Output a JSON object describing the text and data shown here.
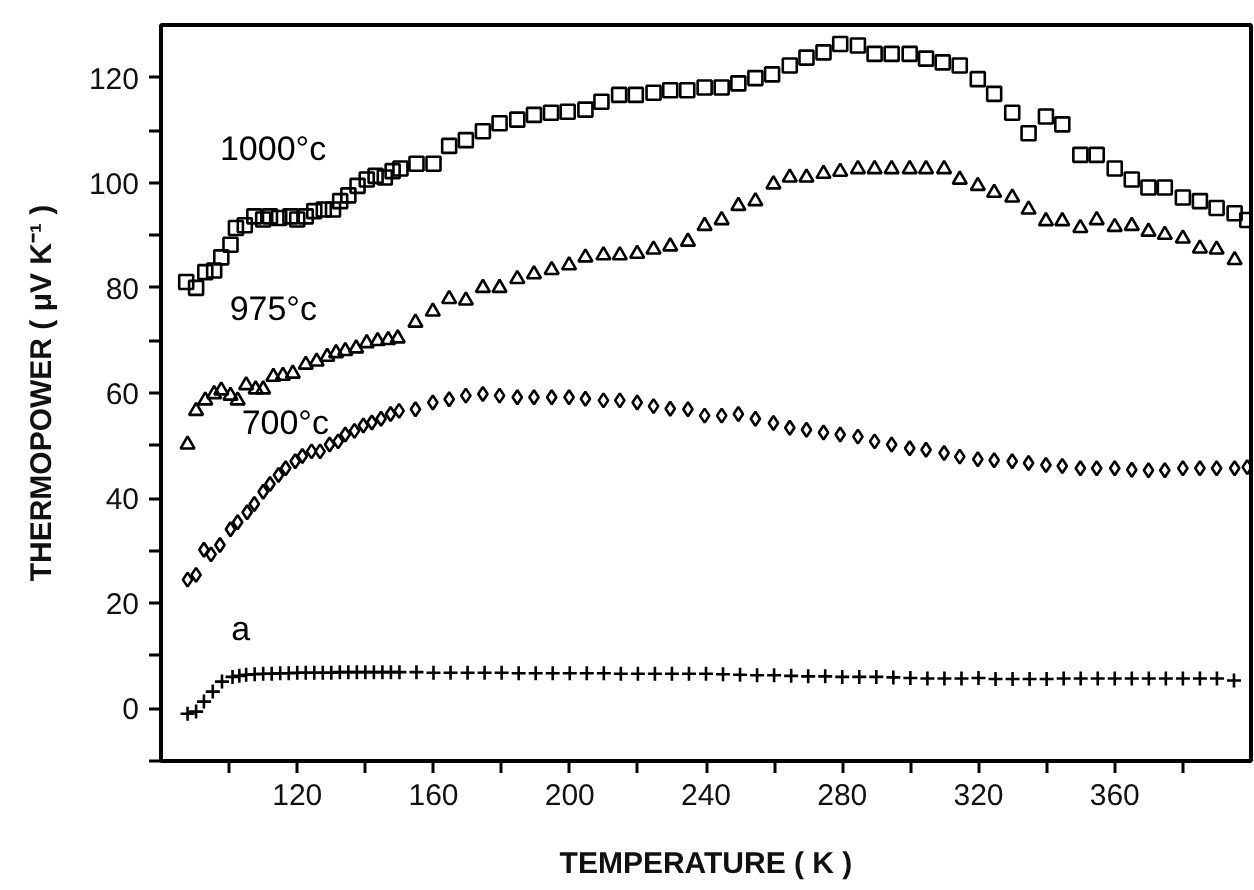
{
  "chart_data": {
    "type": "scatter",
    "xlabel": "TEMPERATURE ( K )",
    "ylabel": "THERMOPOWER ( μV K⁻¹ )",
    "xlim": [
      80,
      400
    ],
    "ylim": [
      -10,
      130
    ],
    "xticks": [
      {
        "value": 100,
        "label": null
      },
      120,
      {
        "value": 140,
        "label": null
      },
      160,
      {
        "value": 180,
        "label": null
      },
      200,
      {
        "value": 220,
        "label": null
      },
      240,
      {
        "value": 260,
        "label": null
      },
      280,
      {
        "value": 300,
        "label": null
      },
      320,
      {
        "value": 340,
        "label": null
      },
      360,
      {
        "value": 380,
        "label": null
      }
    ],
    "yticks": [
      {
        "value": -10,
        "label": null
      },
      0,
      {
        "value": 10,
        "label": null
      },
      20,
      {
        "value": 30,
        "label": null
      },
      40,
      {
        "value": 50,
        "label": null
      },
      60,
      {
        "value": 70,
        "label": null
      },
      80,
      {
        "value": 90,
        "label": null
      },
      100,
      {
        "value": 110,
        "label": null
      },
      120
    ],
    "grid": false,
    "legend": "left",
    "series": [
      {
        "name": "1000°c",
        "color": "#000000",
        "marker": "square",
        "x": [
          87.4,
          90.3,
          93,
          95.6,
          97.7,
          100.4,
          102,
          104.6,
          107.4,
          110,
          112,
          114.7,
          118,
          120,
          122.5,
          125,
          127.8,
          130.5,
          132.6,
          135,
          137.7,
          140.4,
          143,
          145.7,
          148,
          150.3,
          155,
          160,
          164.6,
          169.5,
          174.5,
          179.4,
          184.6,
          189.5,
          194.5,
          199.4,
          204.6,
          209.3,
          214.5,
          219.4,
          224.6,
          229.5,
          234.5,
          239.6,
          244.6,
          249.5,
          254.5,
          259.4,
          264.6,
          269.5,
          274.5,
          279.4,
          284.6,
          289.5,
          294.5,
          299.8,
          304.6,
          309.5,
          314.5,
          319.8,
          324.6,
          329.9,
          334.7,
          339.8,
          344.6,
          349.9,
          354.7,
          360,
          365,
          369.9,
          374.7,
          380,
          385,
          389.9,
          395.2,
          398.9
        ],
        "values": [
          81.1,
          80,
          83,
          83.3,
          85.8,
          88.2,
          91.4,
          91.9,
          93.6,
          93,
          93.6,
          93.3,
          93.6,
          93,
          93.6,
          94.6,
          94.9,
          94.9,
          96.5,
          97.6,
          99.4,
          100.6,
          101.3,
          101,
          102.2,
          102.7,
          103.6,
          103.6,
          107,
          108.1,
          109.8,
          111.3,
          112,
          112.9,
          113.3,
          113.5,
          113.9,
          115.4,
          116.7,
          116.7,
          117.1,
          117.6,
          117.6,
          118.1,
          118.1,
          118.9,
          119.9,
          120.6,
          122.3,
          123.8,
          124.8,
          126.4,
          126.1,
          124.5,
          124.5,
          124.5,
          123.6,
          122.9,
          122.3,
          119.7,
          116.9,
          113.3,
          109.4,
          112.6,
          111.1,
          105.3,
          105.3,
          102.7,
          100.6,
          99.1,
          99.1,
          97.2,
          96.5,
          95.2,
          94.2,
          92.9
        ]
      },
      {
        "name": "975°c",
        "color": "#000000",
        "marker": "triangle",
        "x": [
          87.8,
          90.3,
          93,
          95.6,
          97.7,
          100.4,
          102.5,
          105,
          107.8,
          110,
          113,
          115.8,
          118.7,
          122.5,
          125.7,
          128.8,
          131.4,
          134.1,
          137.3,
          140.4,
          143.6,
          146.7,
          149.5,
          154.7,
          159.8,
          164.6,
          169.5,
          174.5,
          179.4,
          184.6,
          189.5,
          194.7,
          199.8,
          204.6,
          209.9,
          214.7,
          219.8,
          224.6,
          229.5,
          234.7,
          239.6,
          244.6,
          249.5,
          254.5,
          259.8,
          264.6,
          269.5,
          274.5,
          279.4,
          284.6,
          289.5,
          294.5,
          299.8,
          304.6,
          309.9,
          314.5,
          319.8,
          324.6,
          329.9,
          334.7,
          339.8,
          344.6,
          349.9,
          354.7,
          360,
          365,
          369.9,
          374.7,
          380,
          385,
          389.9,
          395.2
        ],
        "values": [
          50.2,
          56.6,
          58.6,
          59.8,
          60.5,
          59.5,
          58.6,
          61.5,
          60.7,
          60.7,
          63.1,
          63.3,
          63.7,
          65.4,
          66,
          66.9,
          67.6,
          68,
          68.5,
          69.5,
          69.9,
          70.1,
          70.4,
          73.4,
          75.5,
          77.9,
          77.6,
          80,
          80,
          81.7,
          82.6,
          83.4,
          84.3,
          85.8,
          86.2,
          86.2,
          86.5,
          87.3,
          87.9,
          88.8,
          91.8,
          92.9,
          95.6,
          96.5,
          99.7,
          101,
          101,
          101.7,
          102.1,
          102.6,
          102.6,
          102.6,
          102.6,
          102.6,
          102.6,
          100.6,
          99.4,
          98.1,
          97.2,
          94.9,
          92.7,
          92.7,
          91.4,
          92.9,
          91.6,
          91.8,
          90.7,
          90.1,
          89.4,
          87.5,
          87.3,
          85.3
        ]
      },
      {
        "name": "700°c",
        "color": "#000000",
        "marker": "diamond",
        "x": [
          87.8,
          90.3,
          92.6,
          94.7,
          97.3,
          100.4,
          102.5,
          105.3,
          107.4,
          110,
          112,
          114.5,
          116.6,
          119.4,
          121.5,
          124.2,
          126.7,
          129.5,
          132,
          134.1,
          136.8,
          139.4,
          141.9,
          144.6,
          147.4,
          149.9,
          154.7,
          159.8,
          164.6,
          169.5,
          174.5,
          179.4,
          184.6,
          189.5,
          194.7,
          199.8,
          204.6,
          209.9,
          214.7,
          219.8,
          224.6,
          229.5,
          234.7,
          239.6,
          244.6,
          249.5,
          254.5,
          259.8,
          264.6,
          269.5,
          274.5,
          279.4,
          284.6,
          289.5,
          294.5,
          299.8,
          304.6,
          309.9,
          314.5,
          319.8,
          324.6,
          329.9,
          334.7,
          339.8,
          344.6,
          349.9,
          354.7,
          360,
          365,
          369.9,
          374.7,
          380,
          385,
          389.9,
          395.2,
          398.9
        ],
        "values": [
          24.5,
          25.4,
          30.2,
          29.3,
          31.1,
          34.1,
          35.4,
          37.3,
          38.9,
          41.2,
          42.7,
          44.4,
          45.7,
          47,
          48,
          48.9,
          48.9,
          50.2,
          50.8,
          52.1,
          52.8,
          53.8,
          54.4,
          55.1,
          56,
          56.6,
          56.9,
          58.2,
          58.8,
          59.5,
          59.8,
          59.5,
          59.2,
          59.2,
          59.2,
          59.2,
          58.9,
          58.6,
          58.6,
          58.2,
          57.5,
          57,
          56.9,
          55.7,
          55.7,
          56,
          55.1,
          54.3,
          53.4,
          53,
          52.5,
          52.1,
          51.7,
          50.8,
          50.2,
          49.5,
          49.2,
          48.6,
          47.9,
          47.4,
          47.2,
          47,
          46.7,
          46.3,
          46.1,
          45.7,
          45.7,
          45.7,
          45.4,
          45.3,
          45.3,
          45.7,
          45.7,
          45.7,
          45.7,
          45.9
        ]
      },
      {
        "name": "a",
        "color": "#000000",
        "marker": "cross",
        "x": [
          87.8,
          90.3,
          92.6,
          95.2,
          97.9,
          101,
          103,
          105,
          107.5,
          110,
          112.5,
          115,
          117.5,
          120,
          122.5,
          125,
          127.5,
          130,
          132.5,
          135,
          137.5,
          140,
          142.5,
          145,
          147.5,
          150,
          155,
          160,
          165,
          170,
          175,
          180,
          185,
          190,
          195,
          200,
          205,
          210,
          215,
          220,
          225,
          230,
          235,
          240,
          245,
          250,
          255,
          260,
          265,
          270,
          275,
          280,
          285,
          290,
          295,
          300,
          305,
          310,
          315,
          320,
          325,
          330,
          335,
          340,
          345,
          350,
          355,
          360,
          365,
          370,
          375,
          380,
          385,
          390,
          395
        ],
        "values": [
          -1,
          -0.6,
          1.3,
          3.2,
          5.1,
          6,
          6.2,
          6.4,
          6.5,
          6.6,
          6.6,
          6.7,
          6.7,
          6.8,
          6.8,
          6.8,
          6.8,
          6.8,
          6.9,
          6.9,
          6.9,
          6.9,
          6.9,
          6.9,
          6.9,
          6.9,
          6.9,
          6.8,
          6.8,
          6.8,
          6.8,
          6.8,
          6.7,
          6.7,
          6.7,
          6.7,
          6.7,
          6.7,
          6.6,
          6.6,
          6.6,
          6.6,
          6.6,
          6.6,
          6.5,
          6.4,
          6.3,
          6.3,
          6.2,
          6.1,
          6.1,
          6,
          6,
          6,
          5.9,
          5.8,
          5.7,
          5.7,
          5.7,
          5.8,
          5.6,
          5.6,
          5.6,
          5.6,
          5.7,
          5.7,
          5.7,
          5.7,
          5.7,
          5.7,
          5.7,
          5.7,
          5.7,
          5.7,
          5.3
        ]
      }
    ]
  }
}
